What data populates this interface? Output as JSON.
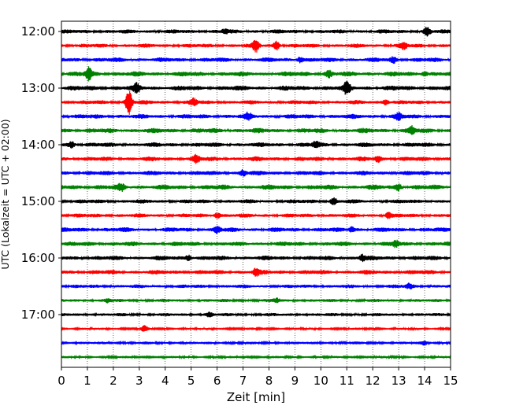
{
  "chart_data": {
    "type": "line",
    "title": "",
    "xlabel": "Zeit  [min]",
    "ylabel": "UTC (Lokalzeit = UTC + 02:00)",
    "xlim": [
      0,
      15
    ],
    "x_ticks": [
      "0",
      "1",
      "2",
      "3",
      "4",
      "5",
      "6",
      "7",
      "8",
      "9",
      "10",
      "11",
      "12",
      "13",
      "14",
      "15"
    ],
    "y_ticks": [
      {
        "label": "12:00",
        "hour": 12
      },
      {
        "label": "13:00",
        "hour": 13
      },
      {
        "label": "14:00",
        "hour": 14
      },
      {
        "label": "15:00",
        "hour": 15
      },
      {
        "label": "16:00",
        "hour": 16
      },
      {
        "label": "17:00",
        "hour": 17
      }
    ],
    "grid": "vertical dotted at each minute",
    "trace_interval_minutes": 15,
    "start_time": "12:00",
    "color_cycle": [
      "#000000",
      "#ff0000",
      "#0000ff",
      "#008000"
    ],
    "series": [
      {
        "start": "12:00",
        "color": "#000000",
        "amplitude": 0.45,
        "events": [
          {
            "minute": 6.3,
            "amp": 0.6
          },
          {
            "minute": 14.1,
            "amp": 1.2
          }
        ]
      },
      {
        "start": "12:15",
        "color": "#ff0000",
        "amplitude": 0.45,
        "events": [
          {
            "minute": 7.5,
            "amp": 1.8
          },
          {
            "minute": 8.3,
            "amp": 1.3
          },
          {
            "minute": 13.2,
            "amp": 1.0
          }
        ]
      },
      {
        "start": "12:30",
        "color": "#0000ff",
        "amplitude": 0.5,
        "events": [
          {
            "minute": 9.2,
            "amp": 0.9
          },
          {
            "minute": 12.8,
            "amp": 0.8
          }
        ]
      },
      {
        "start": "12:45",
        "color": "#008000",
        "amplitude": 0.55,
        "events": [
          {
            "minute": 1.05,
            "amp": 1.8
          },
          {
            "minute": 10.3,
            "amp": 0.9
          },
          {
            "minute": 14.0,
            "amp": 0.7
          }
        ]
      },
      {
        "start": "13:00",
        "color": "#000000",
        "amplitude": 0.55,
        "events": [
          {
            "minute": 2.9,
            "amp": 1.2
          },
          {
            "minute": 11.0,
            "amp": 1.8
          }
        ]
      },
      {
        "start": "13:15",
        "color": "#ff0000",
        "amplitude": 0.45,
        "events": [
          {
            "minute": 2.6,
            "amp": 3.8
          },
          {
            "minute": 5.1,
            "amp": 1.0
          },
          {
            "minute": 12.5,
            "amp": 0.8
          }
        ]
      },
      {
        "start": "13:30",
        "color": "#0000ff",
        "amplitude": 0.5,
        "events": [
          {
            "minute": 7.2,
            "amp": 0.9
          },
          {
            "minute": 13.0,
            "amp": 0.9
          }
        ]
      },
      {
        "start": "13:45",
        "color": "#008000",
        "amplitude": 0.55,
        "events": [
          {
            "minute": 13.5,
            "amp": 1.1
          }
        ]
      },
      {
        "start": "14:00",
        "color": "#000000",
        "amplitude": 0.5,
        "events": [
          {
            "minute": 0.4,
            "amp": 0.8
          },
          {
            "minute": 9.8,
            "amp": 0.8
          }
        ]
      },
      {
        "start": "14:15",
        "color": "#ff0000",
        "amplitude": 0.5,
        "events": [
          {
            "minute": 5.2,
            "amp": 1.0
          },
          {
            "minute": 12.2,
            "amp": 0.8
          }
        ]
      },
      {
        "start": "14:30",
        "color": "#0000ff",
        "amplitude": 0.5,
        "events": [
          {
            "minute": 7.0,
            "amp": 0.9
          }
        ]
      },
      {
        "start": "14:45",
        "color": "#008000",
        "amplitude": 0.55,
        "events": [
          {
            "minute": 2.3,
            "amp": 0.9
          },
          {
            "minute": 13.0,
            "amp": 0.9
          }
        ]
      },
      {
        "start": "15:00",
        "color": "#000000",
        "amplitude": 0.45,
        "events": [
          {
            "minute": 10.5,
            "amp": 0.9
          }
        ]
      },
      {
        "start": "15:15",
        "color": "#ff0000",
        "amplitude": 0.45,
        "events": [
          {
            "minute": 6.0,
            "amp": 0.9
          },
          {
            "minute": 12.6,
            "amp": 0.8
          }
        ]
      },
      {
        "start": "15:30",
        "color": "#0000ff",
        "amplitude": 0.5,
        "events": [
          {
            "minute": 6.0,
            "amp": 0.9
          },
          {
            "minute": 11.2,
            "amp": 0.8
          }
        ]
      },
      {
        "start": "15:45",
        "color": "#008000",
        "amplitude": 0.5,
        "events": [
          {
            "minute": 12.9,
            "amp": 0.9
          }
        ]
      },
      {
        "start": "16:00",
        "color": "#000000",
        "amplitude": 0.5,
        "events": [
          {
            "minute": 4.9,
            "amp": 0.9
          },
          {
            "minute": 11.6,
            "amp": 0.9
          }
        ]
      },
      {
        "start": "16:15",
        "color": "#ff0000",
        "amplitude": 0.5,
        "events": [
          {
            "minute": 7.5,
            "amp": 1.0
          }
        ]
      },
      {
        "start": "16:30",
        "color": "#0000ff",
        "amplitude": 0.4,
        "events": [
          {
            "minute": 13.4,
            "amp": 0.7
          }
        ]
      },
      {
        "start": "16:45",
        "color": "#008000",
        "amplitude": 0.35,
        "events": [
          {
            "minute": 1.8,
            "amp": 0.6
          },
          {
            "minute": 8.3,
            "amp": 0.6
          }
        ]
      },
      {
        "start": "17:00",
        "color": "#000000",
        "amplitude": 0.35,
        "events": [
          {
            "minute": 5.7,
            "amp": 0.6
          }
        ]
      },
      {
        "start": "17:15",
        "color": "#ff0000",
        "amplitude": 0.25,
        "events": [
          {
            "minute": 3.2,
            "amp": 0.8
          }
        ]
      },
      {
        "start": "17:30",
        "color": "#0000ff",
        "amplitude": 0.3,
        "events": [
          {
            "minute": 14.0,
            "amp": 0.6
          }
        ]
      },
      {
        "start": "17:45",
        "color": "#008000",
        "amplitude": 0.25,
        "events": [
          {
            "minute": 7.0,
            "amp": 0.4
          }
        ]
      }
    ]
  }
}
